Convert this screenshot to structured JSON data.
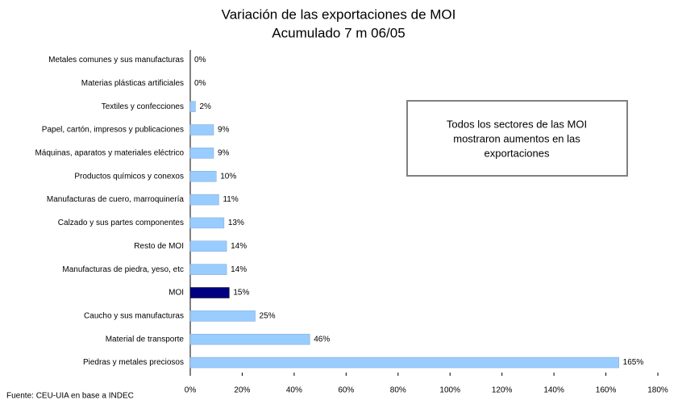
{
  "chart_data": {
    "type": "bar",
    "orientation": "horizontal",
    "title": "Variación de las exportaciones de MOI",
    "subtitle": "Acumulado 7 m 06/05",
    "categories": [
      "Metales comunes y sus manufacturas",
      "Materias plásticas artificiales",
      "Textiles y confecciones",
      "Papel, cartón, impresos y publicaciones",
      "Máquinas, aparatos y materiales eléctrico",
      "Productos químicos y conexos",
      "Manufacturas de cuero, marroquinería",
      "Calzado y sus partes componentes",
      "Resto de MOI",
      "Manufacturas de piedra, yeso, etc",
      "MOI",
      "Caucho y sus manufacturas",
      "Material de transporte",
      "Piedras y metales preciosos"
    ],
    "values": [
      0,
      0,
      2,
      9,
      9,
      10,
      11,
      13,
      14,
      14,
      15,
      25,
      46,
      165
    ],
    "value_labels": [
      "0%",
      "0%",
      "2%",
      "9%",
      "9%",
      "10%",
      "11%",
      "13%",
      "14%",
      "14%",
      "15%",
      "25%",
      "46%",
      "165%"
    ],
    "colors": [
      "#99ccff",
      "#99ccff",
      "#99ccff",
      "#99ccff",
      "#99ccff",
      "#99ccff",
      "#99ccff",
      "#99ccff",
      "#99ccff",
      "#99ccff",
      "#000080",
      "#99ccff",
      "#99ccff",
      "#99ccff"
    ],
    "xlim": [
      0,
      180
    ],
    "xticks": [
      {
        "value": 0,
        "label": "0%"
      },
      {
        "value": 20,
        "label": "20%"
      },
      {
        "value": 40,
        "label": "40%"
      },
      {
        "value": 60,
        "label": "60%"
      },
      {
        "value": 80,
        "label": "80%"
      },
      {
        "value": 100,
        "label": "100%"
      },
      {
        "value": 120,
        "label": "120%"
      },
      {
        "value": 140,
        "label": "140%"
      },
      {
        "value": 160,
        "label": "160%"
      },
      {
        "value": 180,
        "label": "180%"
      }
    ],
    "annotation": [
      "Todos los sectores de las MOI",
      "mostraron aumentos en las",
      "exportaciones"
    ],
    "source": "Fuente: CEU-UIA en base a INDEC"
  }
}
